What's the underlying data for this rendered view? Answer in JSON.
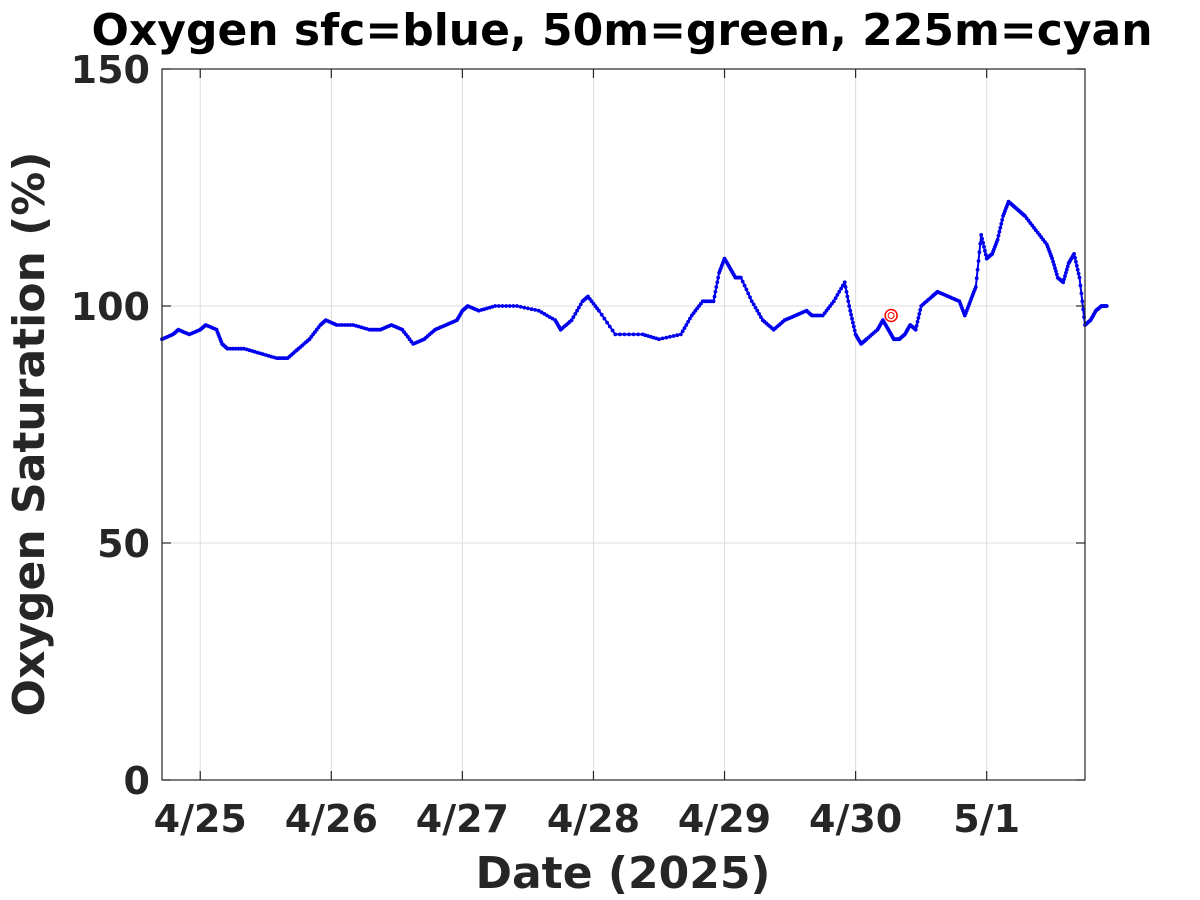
{
  "chart_data": {
    "type": "line",
    "title": "Oxygen sfc=blue, 50m=green, 225m=cyan",
    "xlabel": "Date (2025)",
    "ylabel": "Oxygen Saturation (%)",
    "xlim": [
      "2025-04-24 17:00",
      "2025-05-01 18:00"
    ],
    "ylim": [
      0,
      150
    ],
    "grid": true,
    "x_ticks": [
      {
        "date": "2025-04-25",
        "label": "4/25"
      },
      {
        "date": "2025-04-26",
        "label": "4/26"
      },
      {
        "date": "2025-04-27",
        "label": "4/27"
      },
      {
        "date": "2025-04-28",
        "label": "4/28"
      },
      {
        "date": "2025-04-29",
        "label": "4/29"
      },
      {
        "date": "2025-04-30",
        "label": "4/30"
      },
      {
        "date": "2025-05-01",
        "label": "5/1"
      }
    ],
    "y_ticks": [
      0,
      50,
      100,
      150
    ],
    "series": [
      {
        "color": "#0000ee",
        "marker": "dot",
        "points": [
          [
            "2025-04-24 17:00",
            93
          ],
          [
            "2025-04-24 19:00",
            94
          ],
          [
            "2025-04-24 20:00",
            95
          ],
          [
            "2025-04-24 22:00",
            94
          ],
          [
            "2025-04-25 00:00",
            95
          ],
          [
            "2025-04-25 01:00",
            96
          ],
          [
            "2025-04-25 03:00",
            95
          ],
          [
            "2025-04-25 04:00",
            92
          ],
          [
            "2025-04-25 05:00",
            91
          ],
          [
            "2025-04-25 08:00",
            91
          ],
          [
            "2025-04-25 11:00",
            90
          ],
          [
            "2025-04-25 14:00",
            89
          ],
          [
            "2025-04-25 16:00",
            89
          ],
          [
            "2025-04-25 18:00",
            91
          ],
          [
            "2025-04-25 20:00",
            93
          ],
          [
            "2025-04-25 22:00",
            96
          ],
          [
            "2025-04-25 23:00",
            97
          ],
          [
            "2025-04-26 01:00",
            96
          ],
          [
            "2025-04-26 04:00",
            96
          ],
          [
            "2025-04-26 07:00",
            95
          ],
          [
            "2025-04-26 09:00",
            95
          ],
          [
            "2025-04-26 11:00",
            96
          ],
          [
            "2025-04-26 13:00",
            95
          ],
          [
            "2025-04-26 15:00",
            92
          ],
          [
            "2025-04-26 17:00",
            93
          ],
          [
            "2025-04-26 19:00",
            95
          ],
          [
            "2025-04-26 21:00",
            96
          ],
          [
            "2025-04-26 23:00",
            97
          ],
          [
            "2025-04-27 00:00",
            99
          ],
          [
            "2025-04-27 01:00",
            100
          ],
          [
            "2025-04-27 03:00",
            99
          ],
          [
            "2025-04-27 06:00",
            100
          ],
          [
            "2025-04-27 10:00",
            100
          ],
          [
            "2025-04-27 14:00",
            99
          ],
          [
            "2025-04-27 17:00",
            97
          ],
          [
            "2025-04-27 18:00",
            95
          ],
          [
            "2025-04-27 20:00",
            97
          ],
          [
            "2025-04-27 22:00",
            101
          ],
          [
            "2025-04-27 23:00",
            102
          ],
          [
            "2025-04-28 01:00",
            99
          ],
          [
            "2025-04-28 04:00",
            94
          ],
          [
            "2025-04-28 09:00",
            94
          ],
          [
            "2025-04-28 12:00",
            93
          ],
          [
            "2025-04-28 16:00",
            94
          ],
          [
            "2025-04-28 18:00",
            98
          ],
          [
            "2025-04-28 20:00",
            101
          ],
          [
            "2025-04-28 22:00",
            101
          ],
          [
            "2025-04-28 23:00",
            107
          ],
          [
            "2025-04-29 00:00",
            110
          ],
          [
            "2025-04-29 01:00",
            108
          ],
          [
            "2025-04-29 02:00",
            106
          ],
          [
            "2025-04-29 03:00",
            106
          ],
          [
            "2025-04-29 05:00",
            101
          ],
          [
            "2025-04-29 07:00",
            97
          ],
          [
            "2025-04-29 09:00",
            95
          ],
          [
            "2025-04-29 11:00",
            97
          ],
          [
            "2025-04-29 13:00",
            98
          ],
          [
            "2025-04-29 15:00",
            99
          ],
          [
            "2025-04-29 16:00",
            98
          ],
          [
            "2025-04-29 18:00",
            98
          ],
          [
            "2025-04-29 20:00",
            101
          ],
          [
            "2025-04-29 22:00",
            105
          ],
          [
            "2025-04-29 23:00",
            99
          ],
          [
            "2025-04-30 00:00",
            94
          ],
          [
            "2025-04-30 01:00",
            92
          ],
          [
            "2025-04-30 02:00",
            93
          ],
          [
            "2025-04-30 04:00",
            95
          ],
          [
            "2025-04-30 05:00",
            97
          ],
          [
            "2025-04-30 06:00",
            95
          ],
          [
            "2025-04-30 07:00",
            93
          ],
          [
            "2025-04-30 08:00",
            93
          ],
          [
            "2025-04-30 09:00",
            94
          ],
          [
            "2025-04-30 10:00",
            96
          ],
          [
            "2025-04-30 11:00",
            95
          ],
          [
            "2025-04-30 12:00",
            100
          ],
          [
            "2025-04-30 14:00",
            102
          ],
          [
            "2025-04-30 15:00",
            103
          ],
          [
            "2025-04-30 17:00",
            102
          ],
          [
            "2025-04-30 19:00",
            101
          ],
          [
            "2025-04-30 20:00",
            98
          ],
          [
            "2025-04-30 21:00",
            101
          ],
          [
            "2025-04-30 22:00",
            104
          ],
          [
            "2025-04-30 23:00",
            115
          ],
          [
            "2025-05-01 00:00",
            110
          ],
          [
            "2025-05-01 01:00",
            111
          ],
          [
            "2025-05-01 02:00",
            114
          ],
          [
            "2025-05-01 03:00",
            119
          ],
          [
            "2025-05-01 04:00",
            122
          ],
          [
            "2025-05-01 05:00",
            121
          ],
          [
            "2025-05-01 06:00",
            120
          ],
          [
            "2025-05-01 07:00",
            119
          ],
          [
            "2025-05-01 09:00",
            116
          ],
          [
            "2025-05-01 11:00",
            113
          ],
          [
            "2025-05-01 12:00",
            110
          ],
          [
            "2025-05-01 13:00",
            106
          ],
          [
            "2025-05-01 14:00",
            105
          ],
          [
            "2025-05-01 15:00",
            109
          ],
          [
            "2025-05-01 16:00",
            111
          ],
          [
            "2025-05-01 17:00",
            106
          ],
          [
            "2025-05-01 18:00",
            96
          ],
          [
            "2025-05-01 19:00",
            97
          ],
          [
            "2025-05-01 20:00",
            99
          ],
          [
            "2025-05-01 21:00",
            100
          ],
          [
            "2025-05-01 22:00",
            100
          ]
        ]
      }
    ],
    "markers": [
      {
        "x": "2025-04-30 06:30",
        "y": 98,
        "color": "#ff0000",
        "symbol": "open-circle"
      }
    ]
  }
}
